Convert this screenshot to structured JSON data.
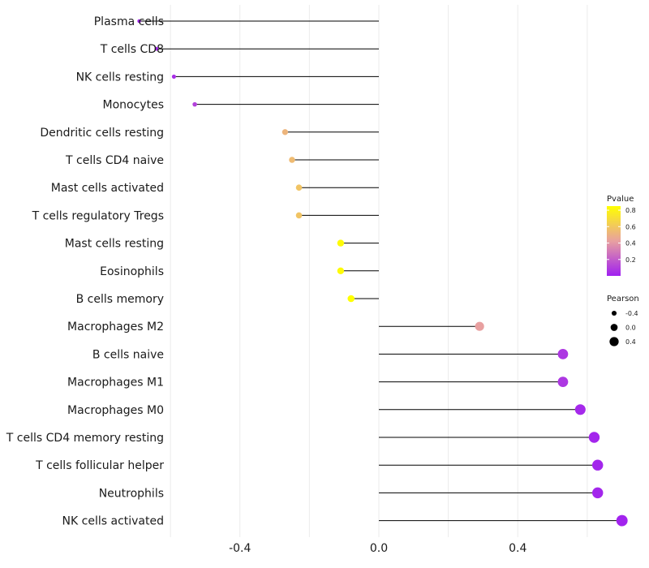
{
  "chart_data": {
    "type": "lollipop",
    "title": "",
    "xlabel": "",
    "ylabel": "",
    "xlim": [
      -0.8,
      0.8
    ],
    "x_ticks": [
      -0.4,
      0.0,
      0.4
    ],
    "x_tick_labels": [
      "-0.4",
      "0.0",
      "0.4"
    ],
    "grid": true,
    "categories": [
      "Plasma cells",
      "T cells CD8",
      "NK cells resting",
      "Monocytes",
      "Dendritic cells resting",
      "T cells CD4 naive",
      "Mast cells activated",
      "T cells regulatory  Tregs",
      "Mast cells resting",
      "Eosinophils",
      "B cells memory",
      "Macrophages M2",
      "B cells naive",
      "Macrophages M1",
      "Macrophages M0",
      "T cells CD4 memory resting",
      "T cells follicular helper",
      "Neutrophils",
      "NK cells activated"
    ],
    "pearson": [
      -0.69,
      -0.64,
      -0.59,
      -0.53,
      -0.27,
      -0.25,
      -0.23,
      -0.23,
      -0.11,
      -0.11,
      -0.08,
      0.29,
      0.53,
      0.53,
      0.58,
      0.62,
      0.63,
      0.63,
      0.7
    ],
    "pvalue": [
      0.01,
      0.02,
      0.05,
      0.12,
      0.55,
      0.58,
      0.62,
      0.62,
      0.88,
      0.88,
      0.92,
      0.45,
      0.08,
      0.08,
      0.03,
      0.02,
      0.02,
      0.02,
      0.01
    ],
    "color_scale": {
      "low": "#a020f0",
      "mid": "#e8a0a0",
      "high": "#ffff00",
      "domain": [
        0.0,
        0.9
      ]
    },
    "legend": {
      "pvalue_title": "Pvalue",
      "pvalue_ticks": [
        0.8,
        0.6,
        0.4,
        0.2
      ],
      "pvalue_tick_labels": [
        "0.8",
        "0.6",
        "0.4",
        "0.2"
      ],
      "pearson_title": "Pearson",
      "pearson_sizes": [
        -0.4,
        0.0,
        0.4
      ],
      "pearson_labels": [
        "-0.4",
        "0.0",
        "0.4"
      ],
      "placement": "right"
    }
  }
}
